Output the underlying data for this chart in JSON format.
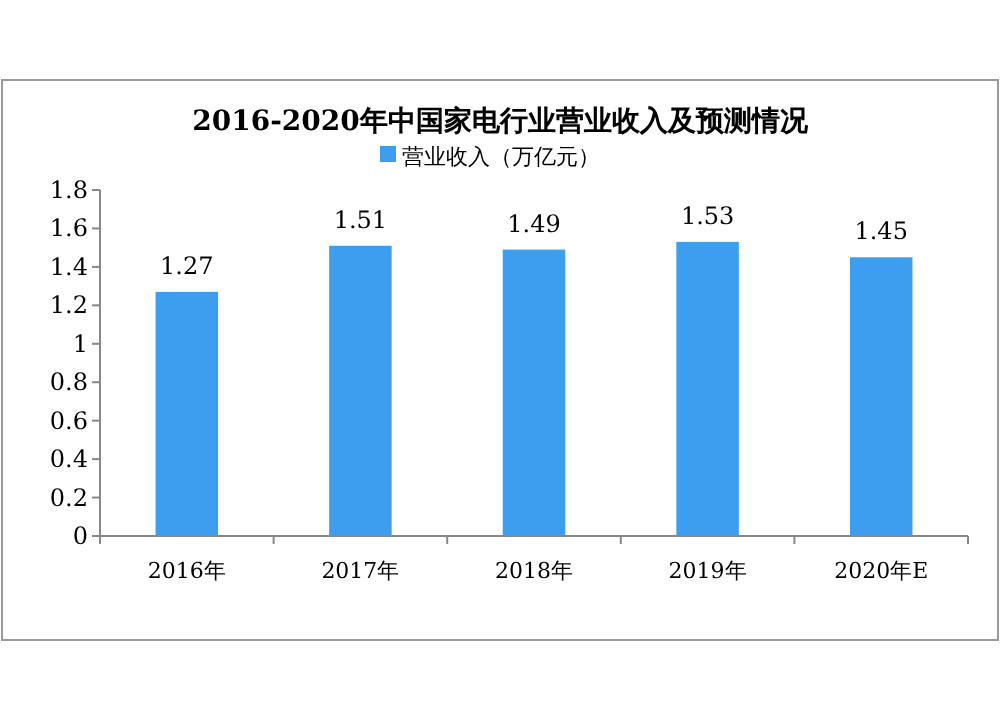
{
  "chart_data": {
    "type": "bar",
    "title": "2016-2020年中国家电行业营业收入及预测情况",
    "categories": [
      "2016年",
      "2017年",
      "2018年",
      "2019年",
      "2020年E"
    ],
    "series": [
      {
        "name": "营业收入（万亿元）",
        "color": "#3d9ef0",
        "values": [
          1.27,
          1.51,
          1.49,
          1.53,
          1.45
        ]
      }
    ],
    "ylim": [
      0,
      1.8
    ],
    "yticks": [
      0,
      0.2,
      0.4,
      0.6,
      0.8,
      1,
      1.2,
      1.4,
      1.6,
      1.8
    ],
    "data_labels": true,
    "legend": "top",
    "grid": false
  }
}
